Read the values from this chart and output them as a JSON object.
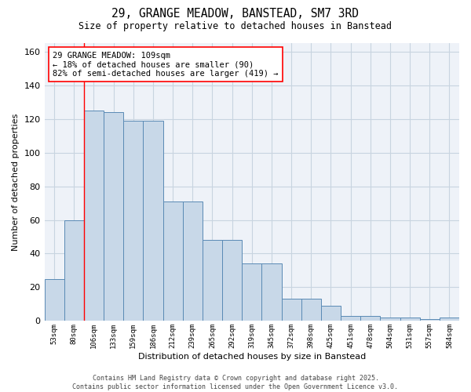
{
  "title": "29, GRANGE MEADOW, BANSTEAD, SM7 3RD",
  "subtitle": "Size of property relative to detached houses in Banstead",
  "xlabel": "Distribution of detached houses by size in Banstead",
  "ylabel": "Number of detached properties",
  "bar_labels": [
    "53sqm",
    "80sqm",
    "106sqm",
    "133sqm",
    "159sqm",
    "186sqm",
    "212sqm",
    "239sqm",
    "265sqm",
    "292sqm",
    "319sqm",
    "345sqm",
    "372sqm",
    "398sqm",
    "425sqm",
    "451sqm",
    "478sqm",
    "504sqm",
    "531sqm",
    "557sqm",
    "584sqm"
  ],
  "bar_values": [
    25,
    60,
    125,
    124,
    119,
    119,
    71,
    71,
    48,
    48,
    34,
    34,
    13,
    13,
    9,
    3,
    3,
    2,
    2,
    1,
    2
  ],
  "bar_color": "#c8d8e8",
  "bar_edge_color": "#5a8ab5",
  "ylim": [
    0,
    165
  ],
  "yticks": [
    0,
    20,
    40,
    60,
    80,
    100,
    120,
    140,
    160
  ],
  "grid_color": "#c8d4e0",
  "background_color": "#eef2f8",
  "annotation_text": "29 GRANGE MEADOW: 109sqm\n← 18% of detached houses are smaller (90)\n82% of semi-detached houses are larger (419) →",
  "red_line_x": 1.5,
  "footer": "Contains HM Land Registry data © Crown copyright and database right 2025.\nContains public sector information licensed under the Open Government Licence v3.0."
}
